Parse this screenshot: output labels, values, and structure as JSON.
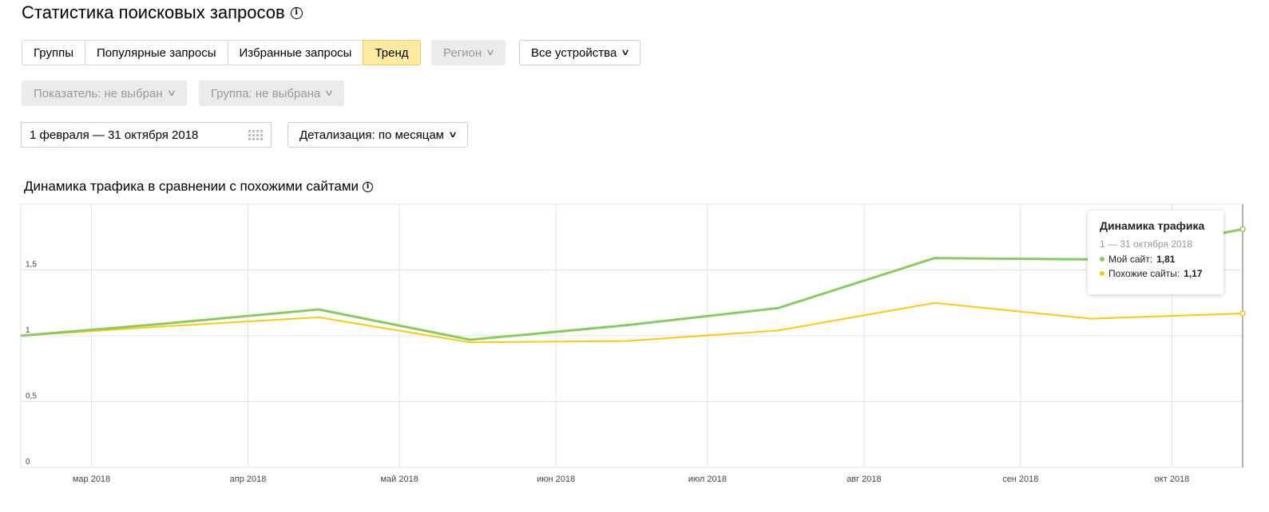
{
  "header": {
    "title": "Статистика поисковых запросов"
  },
  "tabs": [
    {
      "label": "Группы",
      "active": false
    },
    {
      "label": "Популярные запросы",
      "active": false
    },
    {
      "label": "Избранные запросы",
      "active": false
    },
    {
      "label": "Тренд",
      "active": true
    }
  ],
  "filters": {
    "region": "Регион",
    "devices": "Все устройства",
    "indicator": "Показатель: не выбран",
    "group": "Группа: не выбрана",
    "date_range": "1 февраля — 31 октября 2018",
    "detail": "Детализация: по месяцам"
  },
  "chart_section": {
    "title": "Динамика трафика в сравнении с похожими сайтами"
  },
  "tooltip": {
    "title": "Динамика трафика",
    "date": "1 — 31 октября 2018",
    "rows": [
      {
        "label": "Мой сайт:",
        "value": "1,81"
      },
      {
        "label": "Похожие сайты:",
        "value": "1,17"
      }
    ]
  },
  "colors": {
    "my_site": "#8dc962",
    "similar": "#f9c919",
    "active_tab": "#ffeba0"
  },
  "chart_data": {
    "type": "line",
    "x": [
      "2018-02-15",
      "2018-03-15",
      "2018-04-15",
      "2018-05-15",
      "2018-06-15",
      "2018-07-15",
      "2018-08-15",
      "2018-09-15",
      "2018-10-15"
    ],
    "series": [
      {
        "name": "Мой сайт",
        "values": [
          1.0,
          1.09,
          1.2,
          0.97,
          1.08,
          1.21,
          1.59,
          1.58,
          1.81
        ]
      },
      {
        "name": "Похожие сайты",
        "values": [
          1.0,
          1.07,
          1.14,
          0.95,
          0.96,
          1.04,
          1.25,
          1.13,
          1.17
        ]
      }
    ],
    "xticks": [
      {
        "date": "2018-03-01",
        "label": "мар 2018"
      },
      {
        "date": "2018-04-01",
        "label": "апр 2018"
      },
      {
        "date": "2018-05-01",
        "label": "май 2018"
      },
      {
        "date": "2018-06-01",
        "label": "июн 2018"
      },
      {
        "date": "2018-07-01",
        "label": "июл 2018"
      },
      {
        "date": "2018-08-01",
        "label": "авг 2018"
      },
      {
        "date": "2018-09-01",
        "label": "сен 2018"
      },
      {
        "date": "2018-10-01",
        "label": "окт 2018"
      }
    ],
    "yticks": [
      {
        "value": 0,
        "label": "0"
      },
      {
        "value": 0.5,
        "label": "0,5"
      },
      {
        "value": 1,
        "label": "1"
      },
      {
        "value": 1.5,
        "label": "1,5"
      }
    ],
    "ylim": [
      0,
      2
    ],
    "xlim": [
      "2018-02-15",
      "2018-10-15"
    ],
    "grid": true
  }
}
